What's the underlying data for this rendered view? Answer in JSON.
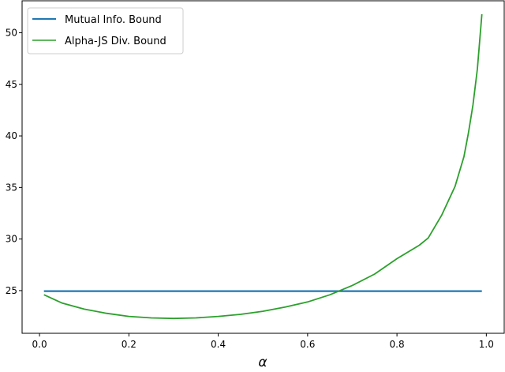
{
  "chart_data": {
    "type": "line",
    "title": "",
    "xlabel": "α",
    "ylabel": "",
    "xlim": [
      -0.039,
      1.04
    ],
    "ylim": [
      20.86,
      53.1
    ],
    "xticks": [
      "0.0",
      "0.2",
      "0.4",
      "0.6",
      "0.8",
      "1.0"
    ],
    "yticks": [
      "25",
      "30",
      "35",
      "40",
      "45",
      "50"
    ],
    "grid": false,
    "legend_position": "top-left",
    "series": [
      {
        "name": "Mutual Info. Bound",
        "color": "#1f77b4",
        "x": [
          0.01,
          0.99
        ],
        "y": [
          24.95,
          24.95
        ]
      },
      {
        "name": "Alpha-JS Div. Bound",
        "color": "#2ca02c",
        "x": [
          0.01,
          0.05,
          0.1,
          0.15,
          0.2,
          0.25,
          0.3,
          0.35,
          0.4,
          0.45,
          0.5,
          0.55,
          0.6,
          0.65,
          0.7,
          0.75,
          0.8,
          0.85,
          0.87,
          0.9,
          0.93,
          0.95,
          0.96,
          0.97,
          0.98,
          0.99
        ],
        "y": [
          24.6,
          23.8,
          23.2,
          22.8,
          22.5,
          22.35,
          22.3,
          22.35,
          22.5,
          22.7,
          23.0,
          23.4,
          23.9,
          24.6,
          25.5,
          26.6,
          28.1,
          29.4,
          30.1,
          32.3,
          35.1,
          38.0,
          40.3,
          43.0,
          46.5,
          51.8
        ]
      }
    ]
  }
}
